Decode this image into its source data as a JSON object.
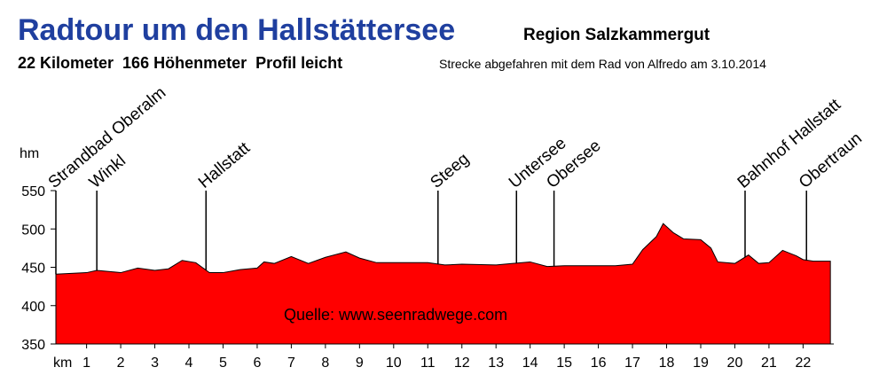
{
  "chart_data": {
    "type": "area",
    "title": "Radtour um den Hallstättersee",
    "subtitle": "Region Salzkammergut",
    "stats": "22 Kilometer  166 Höhenmeter  Profil leicht",
    "note": "Strecke abgefahren mit dem Rad von Alfredo am 3.10.2014",
    "source": "Quelle: www.seenradwege.com",
    "ylabel": "hm",
    "xlabel": "km",
    "color": "#ff0000",
    "x": [
      0.1,
      1.0,
      1.3,
      2.0,
      2.5,
      3.0,
      3.4,
      3.8,
      4.2,
      4.6,
      5.0,
      5.5,
      6.0,
      6.2,
      6.5,
      7.0,
      7.5,
      8.0,
      8.6,
      9.0,
      9.5,
      10.0,
      11.0,
      11.5,
      12.0,
      13.0,
      13.5,
      14.0,
      14.5,
      15.0,
      16.0,
      16.5,
      17.0,
      17.3,
      17.7,
      17.9,
      18.2,
      18.5,
      19.0,
      19.3,
      19.5,
      20.0,
      20.4,
      20.7,
      21.0,
      21.4,
      21.8,
      22.0,
      22.3,
      22.8
    ],
    "values": [
      441,
      443,
      446,
      443,
      449,
      446,
      448,
      459,
      456,
      443,
      443,
      447,
      449,
      457,
      455,
      464,
      455,
      463,
      470,
      462,
      456,
      456,
      456,
      453,
      454,
      453,
      455,
      457,
      451,
      452,
      452,
      452,
      454,
      473,
      490,
      507,
      495,
      487,
      486,
      475,
      457,
      455,
      466,
      455,
      456,
      472,
      465,
      460,
      458,
      458
    ],
    "xlim": [
      0.1,
      22.9
    ],
    "ylim": [
      350,
      550
    ],
    "yticks": [
      350,
      400,
      450,
      500,
      550
    ],
    "xticks": [
      1,
      2,
      3,
      4,
      5,
      6,
      7,
      8,
      9,
      10,
      11,
      12,
      13,
      14,
      15,
      16,
      17,
      18,
      19,
      20,
      21,
      22
    ],
    "annotations": [
      {
        "label": "Strandbad Oberalm",
        "x": 0.1
      },
      {
        "label": "Winkl",
        "x": 1.3
      },
      {
        "label": "Hallstatt",
        "x": 4.5
      },
      {
        "label": "Steeg",
        "x": 11.3
      },
      {
        "label": "Untersee",
        "x": 13.6
      },
      {
        "label": "Obersee",
        "x": 14.7
      },
      {
        "label": "Bahnhof Hallstatt",
        "x": 20.3
      },
      {
        "label": "Obertraun",
        "x": 22.1
      }
    ]
  }
}
